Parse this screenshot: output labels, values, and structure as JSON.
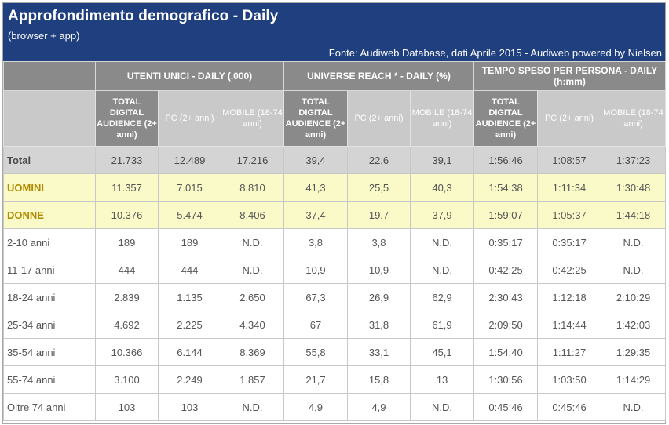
{
  "header": {
    "title": "Approfondimento demografico - Daily",
    "subtitle": "(browser + app)",
    "source": "Fonte: Audiweb Database, dati Aprile 2015 - Audiweb powered by Nielsen"
  },
  "groups": [
    "UTENTI UNICI - DAILY (.000)",
    "UNIVERSE REACH * - DAILY (%)",
    "TEMPO SPESO PER PERSONA - DAILY (h:mm)"
  ],
  "subheaders": {
    "total": "TOTAL DIGITAL AUDIENCE (2+ anni)",
    "pc": "PC (2+ anni)",
    "mobile": "MOBILE (18-74 anni)"
  },
  "rows": [
    {
      "label": "Total",
      "values": [
        "21.733",
        "12.489",
        "17.216",
        "39,4",
        "22,6",
        "39,1",
        "1:56:46",
        "1:08:57",
        "1:37:23"
      ]
    },
    {
      "label": "UOMINI",
      "values": [
        "11.357",
        "7.015",
        "8.810",
        "41,3",
        "25,5",
        "40,3",
        "1:54:38",
        "1:11:34",
        "1:30:48"
      ]
    },
    {
      "label": "DONNE",
      "values": [
        "10.376",
        "5.474",
        "8.406",
        "37,4",
        "19,7",
        "37,9",
        "1:59:07",
        "1:05:37",
        "1:44:18"
      ]
    },
    {
      "label": "2-10 anni",
      "values": [
        "189",
        "189",
        "N.D.",
        "3,8",
        "3,8",
        "N.D.",
        "0:35:17",
        "0:35:17",
        "N.D."
      ]
    },
    {
      "label": "11-17 anni",
      "values": [
        "444",
        "444",
        "N.D.",
        "10,9",
        "10,9",
        "N.D.",
        "0:42:25",
        "0:42:25",
        "N.D."
      ]
    },
    {
      "label": "18-24 anni",
      "values": [
        "2.839",
        "1.135",
        "2.650",
        "67,3",
        "26,9",
        "62,9",
        "2:30:43",
        "1:12:18",
        "2:10:29"
      ]
    },
    {
      "label": "25-34 anni",
      "values": [
        "4.692",
        "2.225",
        "4.340",
        "67",
        "31,8",
        "61,9",
        "2:09:50",
        "1:14:44",
        "1:42:03"
      ]
    },
    {
      "label": "35-54 anni",
      "values": [
        "10.366",
        "6.144",
        "8.369",
        "55,8",
        "33,1",
        "45,1",
        "1:54:40",
        "1:11:27",
        "1:29:35"
      ]
    },
    {
      "label": "55-74 anni",
      "values": [
        "3.100",
        "2.249",
        "1.857",
        "21,7",
        "15,8",
        "13",
        "1:30:56",
        "1:03:50",
        "1:14:29"
      ]
    },
    {
      "label": "Oltre 74 anni",
      "values": [
        "103",
        "103",
        "N.D.",
        "4,9",
        "4,9",
        "N.D.",
        "0:45:46",
        "0:45:46",
        "N.D."
      ]
    }
  ]
}
